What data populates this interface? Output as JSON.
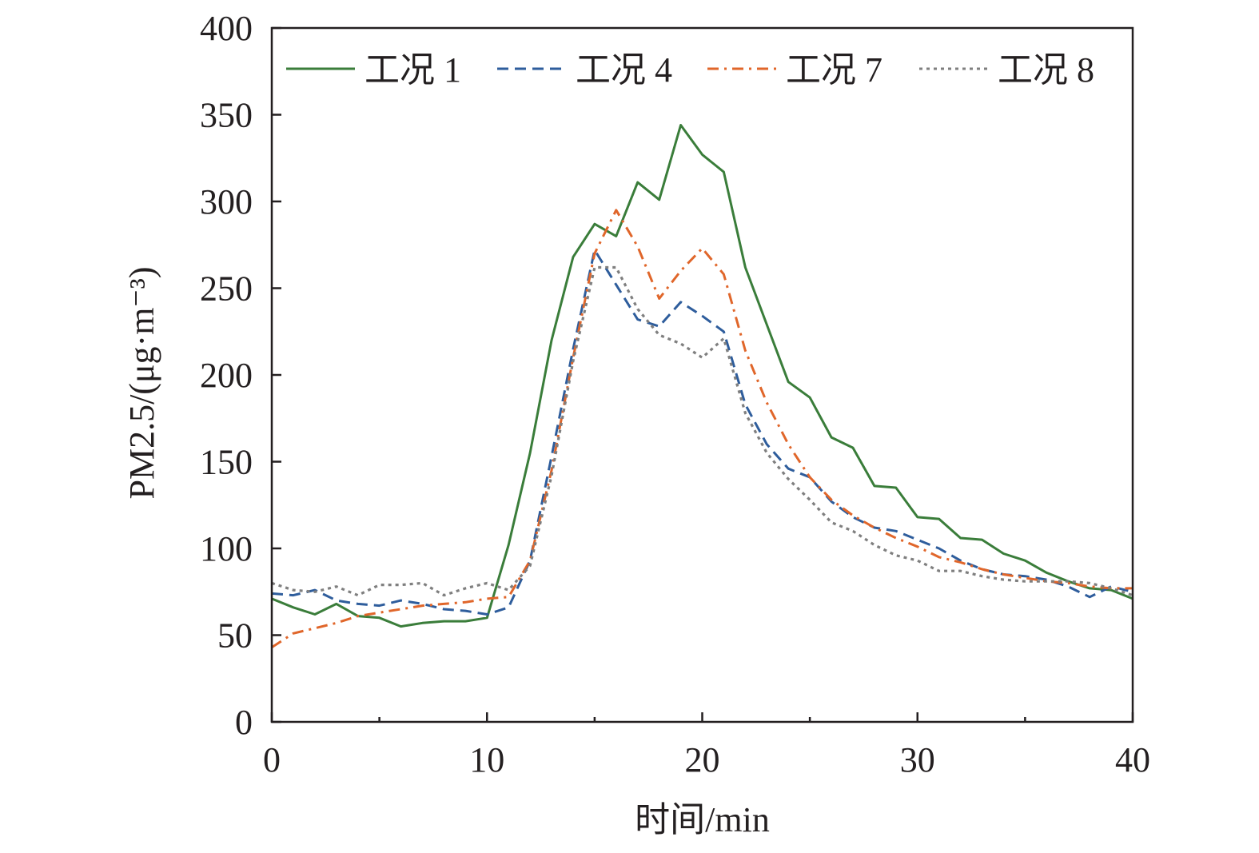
{
  "chart_data": {
    "type": "line",
    "xlabel": "时间/min",
    "ylabel": "PM2.5/(μg·m⁻³)",
    "xlim": [
      0,
      40
    ],
    "ylim": [
      0,
      400
    ],
    "xticks": [
      0,
      10,
      20,
      30,
      40
    ],
    "xtick_labels": [
      "0",
      "10",
      "20",
      "30",
      "40"
    ],
    "xminor_ticks": [
      5,
      15,
      25,
      35
    ],
    "yticks": [
      0,
      50,
      100,
      150,
      200,
      250,
      300,
      350,
      400
    ],
    "ytick_labels": [
      "0",
      "50",
      "100",
      "150",
      "200",
      "250",
      "300",
      "350",
      "400"
    ],
    "grid": false,
    "legend_position": "top",
    "x": [
      0,
      1,
      2,
      3,
      4,
      5,
      6,
      7,
      8,
      9,
      10,
      11,
      12,
      13,
      14,
      15,
      16,
      17,
      18,
      19,
      20,
      21,
      22,
      23,
      24,
      25,
      26,
      27,
      28,
      29,
      30,
      31,
      32,
      33,
      34,
      35,
      36,
      37,
      38,
      39,
      40
    ],
    "series": [
      {
        "name": "工况 1",
        "color": "#3a7d3a",
        "dash": "solid",
        "values": [
          71,
          66,
          62,
          68,
          61,
          60,
          55,
          57,
          58,
          58,
          60,
          102,
          155,
          220,
          268,
          287,
          280,
          311,
          301,
          344,
          327,
          317,
          262,
          229,
          196,
          187,
          164,
          158,
          136,
          135,
          118,
          117,
          106,
          105,
          97,
          93,
          86,
          81,
          77,
          76,
          71
        ]
      },
      {
        "name": "工况 4",
        "color": "#2e5d9c",
        "dash": "dashed",
        "values": [
          74,
          73,
          76,
          70,
          68,
          67,
          70,
          68,
          65,
          64,
          62,
          66,
          93,
          153,
          215,
          272,
          252,
          232,
          228,
          242,
          234,
          225,
          183,
          160,
          146,
          141,
          127,
          118,
          112,
          110,
          105,
          100,
          93,
          88,
          85,
          84,
          82,
          78,
          72,
          78,
          75
        ]
      },
      {
        "name": "工况 7",
        "color": "#e0662a",
        "dash": "dashdot",
        "values": [
          43,
          51,
          54,
          57,
          61,
          63,
          65,
          67,
          68,
          69,
          71,
          72,
          93,
          145,
          210,
          270,
          295,
          274,
          244,
          260,
          273,
          258,
          214,
          184,
          160,
          141,
          128,
          119,
          112,
          106,
          101,
          95,
          92,
          88,
          85,
          83,
          81,
          80,
          78,
          77,
          77
        ]
      },
      {
        "name": "工况 8",
        "color": "#7f7f7f",
        "dash": "dotted",
        "values": [
          80,
          76,
          75,
          78,
          73,
          79,
          79,
          80,
          73,
          77,
          80,
          76,
          90,
          142,
          208,
          262,
          262,
          238,
          223,
          218,
          210,
          221,
          178,
          155,
          140,
          128,
          115,
          110,
          102,
          96,
          93,
          87,
          87,
          84,
          82,
          81,
          81,
          81,
          80,
          77,
          73
        ]
      }
    ]
  }
}
